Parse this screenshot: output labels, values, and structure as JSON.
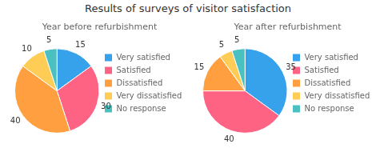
{
  "title": "Results of surveys of visitor satisfaction",
  "chart_data": [
    {
      "type": "pie",
      "title": "Year before refurbishment",
      "categories": [
        "Very satisfied",
        "Satisfied",
        "Dissatisfied",
        "Very dissatisfied",
        "No response"
      ],
      "values": [
        15,
        30,
        40,
        10,
        5
      ],
      "data_labels": true,
      "legend": "right"
    },
    {
      "type": "pie",
      "title": "Year after refurbishment",
      "categories": [
        "Very satisfied",
        "Satisfied",
        "Dissatisfied",
        "Very dissatisfied",
        "No response"
      ],
      "values": [
        35,
        40,
        15,
        5,
        5
      ],
      "data_labels": true,
      "legend": "right"
    }
  ]
}
